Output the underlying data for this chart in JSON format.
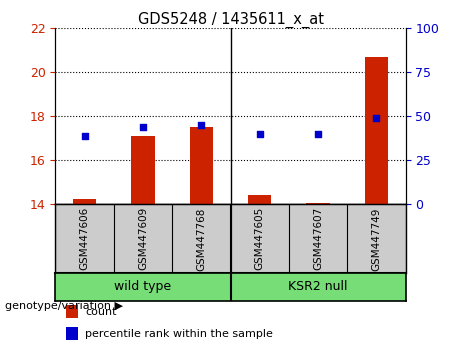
{
  "title": "GDS5248 / 1435611_x_at",
  "samples": [
    "GSM447606",
    "GSM447609",
    "GSM447768",
    "GSM447605",
    "GSM447607",
    "GSM447749"
  ],
  "bar_values": [
    14.2,
    17.1,
    17.5,
    14.4,
    14.05,
    20.7
  ],
  "dot_values": [
    17.1,
    17.5,
    17.6,
    17.2,
    17.2,
    17.9
  ],
  "bar_color": "#cc2200",
  "dot_color": "#0000cc",
  "ylim_left": [
    14,
    22
  ],
  "yticks_left": [
    14,
    16,
    18,
    20,
    22
  ],
  "ylim_right": [
    0,
    100
  ],
  "yticks_right": [
    0,
    25,
    50,
    75,
    100
  ],
  "tick_label_color_left": "#cc2200",
  "tick_label_color_right": "#0000cc",
  "genotype_label": "genotype/variation",
  "group1_label": "wild type",
  "group2_label": "KSR2 null",
  "legend_count": "count",
  "legend_percentile": "percentile rank within the sample",
  "background_color": "#ffffff",
  "plot_bg_color": "#ffffff",
  "sample_area_color": "#cccccc",
  "group_area_color": "#77dd77",
  "bar_bottom": 14,
  "bar_width": 0.4
}
